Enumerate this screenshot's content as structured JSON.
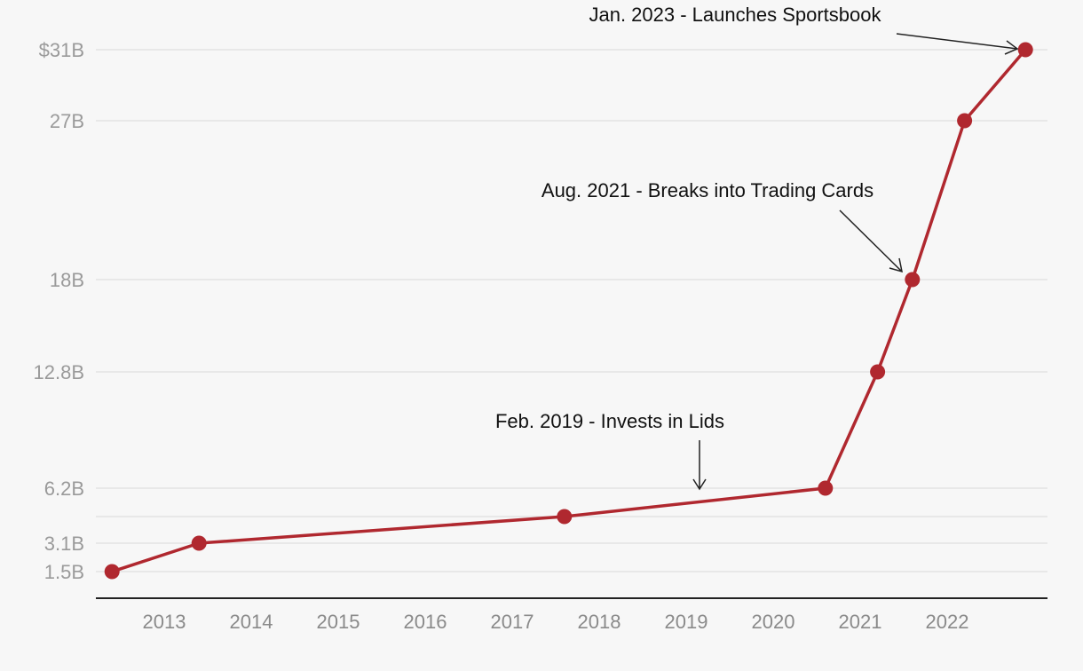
{
  "colors": {
    "line": "#b0282f",
    "grid": "#dedede",
    "axis": "#222222",
    "background": "#f7f7f7"
  },
  "chart_data": {
    "type": "line",
    "title": "",
    "xlabel": "",
    "ylabel": "",
    "x_ticks": [
      "2013",
      "2014",
      "2015",
      "2016",
      "2017",
      "2018",
      "2019",
      "2020",
      "2021",
      "2022"
    ],
    "y_ticks": [
      {
        "value": 1.5,
        "label": "1.5B"
      },
      {
        "value": 3.1,
        "label": "3.1B"
      },
      {
        "value": 6.2,
        "label": "6.2B"
      },
      {
        "value": 12.8,
        "label": "12.8B"
      },
      {
        "value": 18,
        "label": "18B"
      },
      {
        "value": 27,
        "label": "27B"
      },
      {
        "value": 31,
        "label": "$31B"
      }
    ],
    "series": [
      {
        "points": [
          {
            "x": 2012.4,
            "y": 1.5
          },
          {
            "x": 2013.4,
            "y": 3.1
          },
          {
            "x": 2017.6,
            "y": 4.6
          },
          {
            "x": 2020.6,
            "y": 6.2
          },
          {
            "x": 2021.2,
            "y": 12.8
          },
          {
            "x": 2021.6,
            "y": 18
          },
          {
            "x": 2022.2,
            "y": 27
          },
          {
            "x": 2022.9,
            "y": 31
          }
        ]
      }
    ],
    "xlim": [
      2012.2,
      2023.1
    ],
    "ylim": [
      0,
      31.5
    ],
    "grid": true,
    "annotations": [
      {
        "text": "Jan. 2023 - Launches Sportsbook"
      },
      {
        "text": "Aug. 2021 - Breaks into Trading Cards"
      },
      {
        "text": "Feb. 2019 - Invests in Lids"
      }
    ]
  }
}
